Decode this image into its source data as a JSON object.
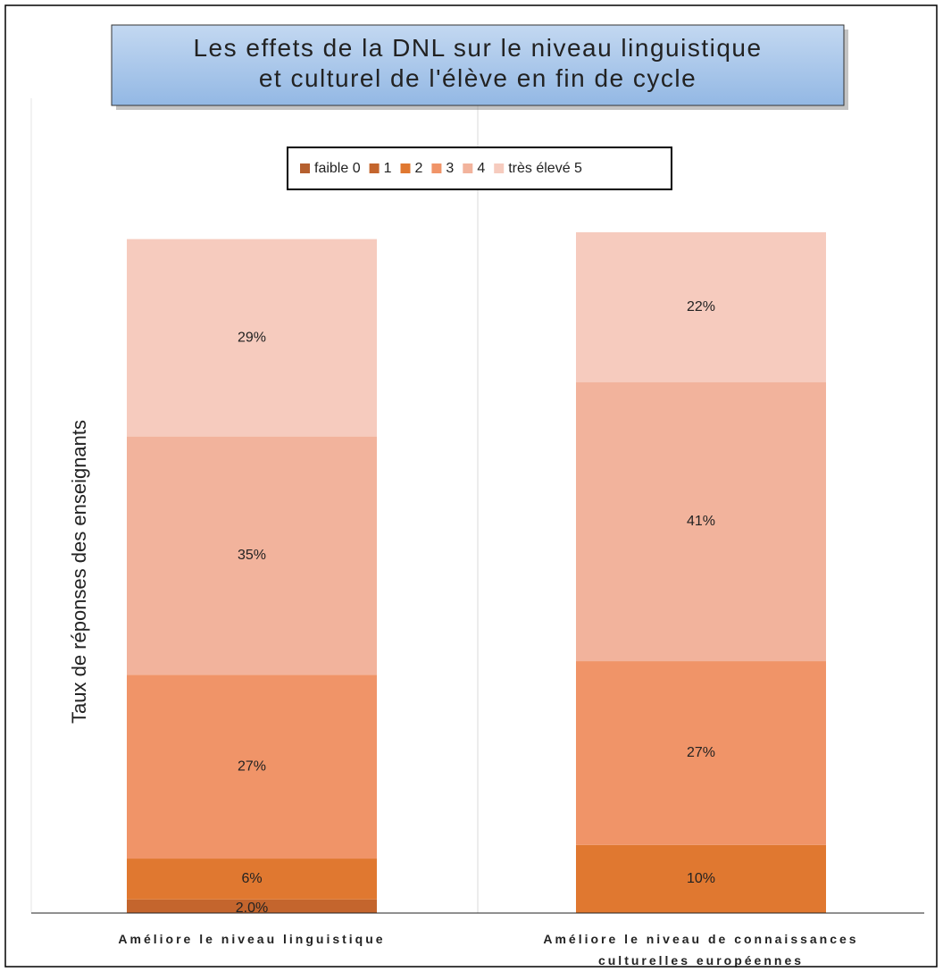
{
  "chart_data": {
    "type": "stacked_bar",
    "title": "Les effets de la DNL sur le niveau linguistique et culturel de l'élève en fin de cycle",
    "y_label": "Taux de réponses des enseignants",
    "categories": [
      "Améliore le niveau linguistique",
      "Améliore le niveau de connaissances culturelles européennes"
    ],
    "ylim": [
      0,
      100
    ],
    "series": [
      {
        "name": "faible 0",
        "color": "#b5602f",
        "values": [
          0,
          0
        ],
        "value_labels": [
          null,
          null
        ]
      },
      {
        "name": "1",
        "color": "#c4652d",
        "values": [
          2.0,
          0
        ],
        "value_labels": [
          "2.0%",
          null
        ]
      },
      {
        "name": "2",
        "color": "#e07830",
        "values": [
          6,
          10
        ],
        "value_labels": [
          "6%",
          "10%"
        ]
      },
      {
        "name": "3",
        "color": "#f09468",
        "values": [
          27,
          27
        ],
        "value_labels": [
          "27%",
          "27%"
        ]
      },
      {
        "name": "4",
        "color": "#f2b39c",
        "values": [
          35,
          41
        ],
        "value_labels": [
          "35%",
          "41%"
        ]
      },
      {
        "name": "très élevé 5",
        "color": "#f6cbbe",
        "values": [
          29,
          22
        ],
        "value_labels": [
          "29%",
          "22%"
        ]
      }
    ]
  }
}
